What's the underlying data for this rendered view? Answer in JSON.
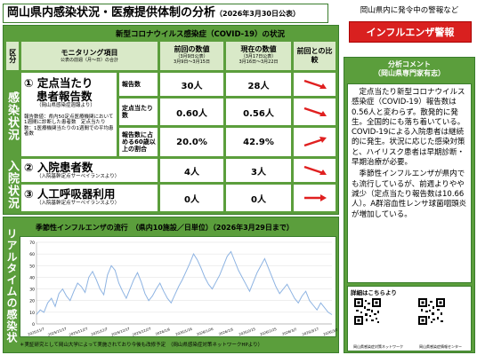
{
  "header": {
    "title": "岡山県内感染状況・医療提供体制の分析",
    "date": "（2026年3月30日公表）"
  },
  "covid": {
    "heading": "新型コロナウイルス感染症（COVID-19）の状況",
    "col_section": "区分",
    "col_item": "モニタリング項目",
    "col_item_sub": "公表の前週（月～日）の合計",
    "col_prev": "前回の数値",
    "col_prev_sub1": "（3月9日公表）",
    "col_prev_sub2": "3月9日～3月15日",
    "col_curr": "現在の数値",
    "col_curr_sub1": "（3月17日公表）",
    "col_curr_sub2": "3月16日～3月22日",
    "col_compare": "前回との比較",
    "section_infection": "感染状況",
    "section_hospital": "入院状況",
    "item1_title": "① 定点当たり",
    "item1_title2": "患者報告数",
    "item1_sub": "（岡山県感染症週報より）",
    "item1_note": "報告数値：県内50定点医療機関において1週間に診断した患者数　定点当たり数：1医療機関当たりの1週間での平均患者数",
    "item2_title": "② 入院患者数",
    "item2_sub": "（入院基幹定点サーベイランスより）",
    "item3_title": "③ 人工呼吸器利用",
    "item3_sub": "（入院基幹定点サーベイランスより）",
    "rows": [
      {
        "label": "報告数",
        "prev": "30人",
        "curr": "28人"
      },
      {
        "label": "定点当たり数",
        "prev": "0.60人",
        "curr": "0.56人"
      },
      {
        "label": "報告数に占める60歳以上の割合",
        "prev": "20.0%",
        "curr": "42.9%"
      },
      {
        "label": "",
        "prev": "4人",
        "curr": "3人"
      },
      {
        "label": "",
        "prev": "0人",
        "curr": "0人"
      }
    ]
  },
  "flu": {
    "section": "リアルタイムの感染状況",
    "chart_title": "季節性インフルエンザの流行　（県内10施設／日単位）（2026年3月29日まで）",
    "footnote": "＊実証研究として岡山大学によって実施されており今後も改修予定　（岡山県感染症対策ネットワークHPより）"
  },
  "chart_data": {
    "type": "line",
    "title": "季節性インフルエンザの流行　（県内10施設／日単位）（2026年3月29日まで）",
    "x_tick_labels": [
      "2025/11/7",
      "2025/11/17",
      "2025/11/27",
      "2025/12/7",
      "2025/12/17",
      "2025/12/27",
      "2026/1/6",
      "2026/1/16",
      "2026/1/26",
      "2026/2/5",
      "2026/2/15",
      "2026/2/25",
      "2026/3/7",
      "2026/3/17",
      "2026/3/27"
    ],
    "y_tick_labels": [
      "0",
      "10",
      "20",
      "30",
      "40",
      "50",
      "60",
      "70"
    ],
    "ylim": [
      0,
      70
    ],
    "series": [
      {
        "values": [
          8,
          12,
          10,
          18,
          22,
          15,
          26,
          30,
          24,
          20,
          28,
          35,
          32,
          27,
          40,
          45,
          38,
          30,
          25,
          42,
          50,
          46,
          35,
          28,
          22,
          30,
          38,
          44,
          36,
          26,
          20,
          24,
          30,
          35,
          28,
          22,
          18,
          25,
          32,
          38,
          45,
          52,
          60,
          55,
          48,
          40,
          34,
          30,
          36,
          42,
          50,
          58,
          62,
          54,
          46,
          40,
          34,
          28,
          36,
          44,
          50,
          56,
          48,
          40,
          32,
          26,
          30,
          34,
          28,
          22,
          18,
          24,
          28,
          20,
          16,
          12,
          18,
          14,
          10,
          8
        ]
      }
    ]
  },
  "warning": {
    "caption": "岡山県内に発令中の警報など",
    "label": "インフルエンザ警報"
  },
  "comment": {
    "heading": "分析コメント",
    "heading_sub": "（岡山県専門家有志）",
    "p1": "定点当たり新型コロナウイルス感染症（COVID-19）報告数は0.56人と変わらず。散発的に発生。全国的にも落ち着いている。COVID-19による入院患者は継続的に発生。状況に応じた感染対策と、ハイリスク患者は早期診断・早期治療が必要。",
    "p2": "季節性インフルエンザが県内でも流行しているが、前週よりやや減少（定点当たり報告数は10.66人）。A群溶血性レンサ球菌咽頭炎が増加している。"
  },
  "qr": {
    "heading": "詳細はこちらより",
    "label1": "岡山県感染症対策ネットワーク",
    "label2": "岡山県感染症情報センター"
  },
  "colors": {
    "green": "#5b9e3c",
    "light_green": "#d9e9c8",
    "red": "#d9201f",
    "chart_line": "#8db3e2"
  }
}
